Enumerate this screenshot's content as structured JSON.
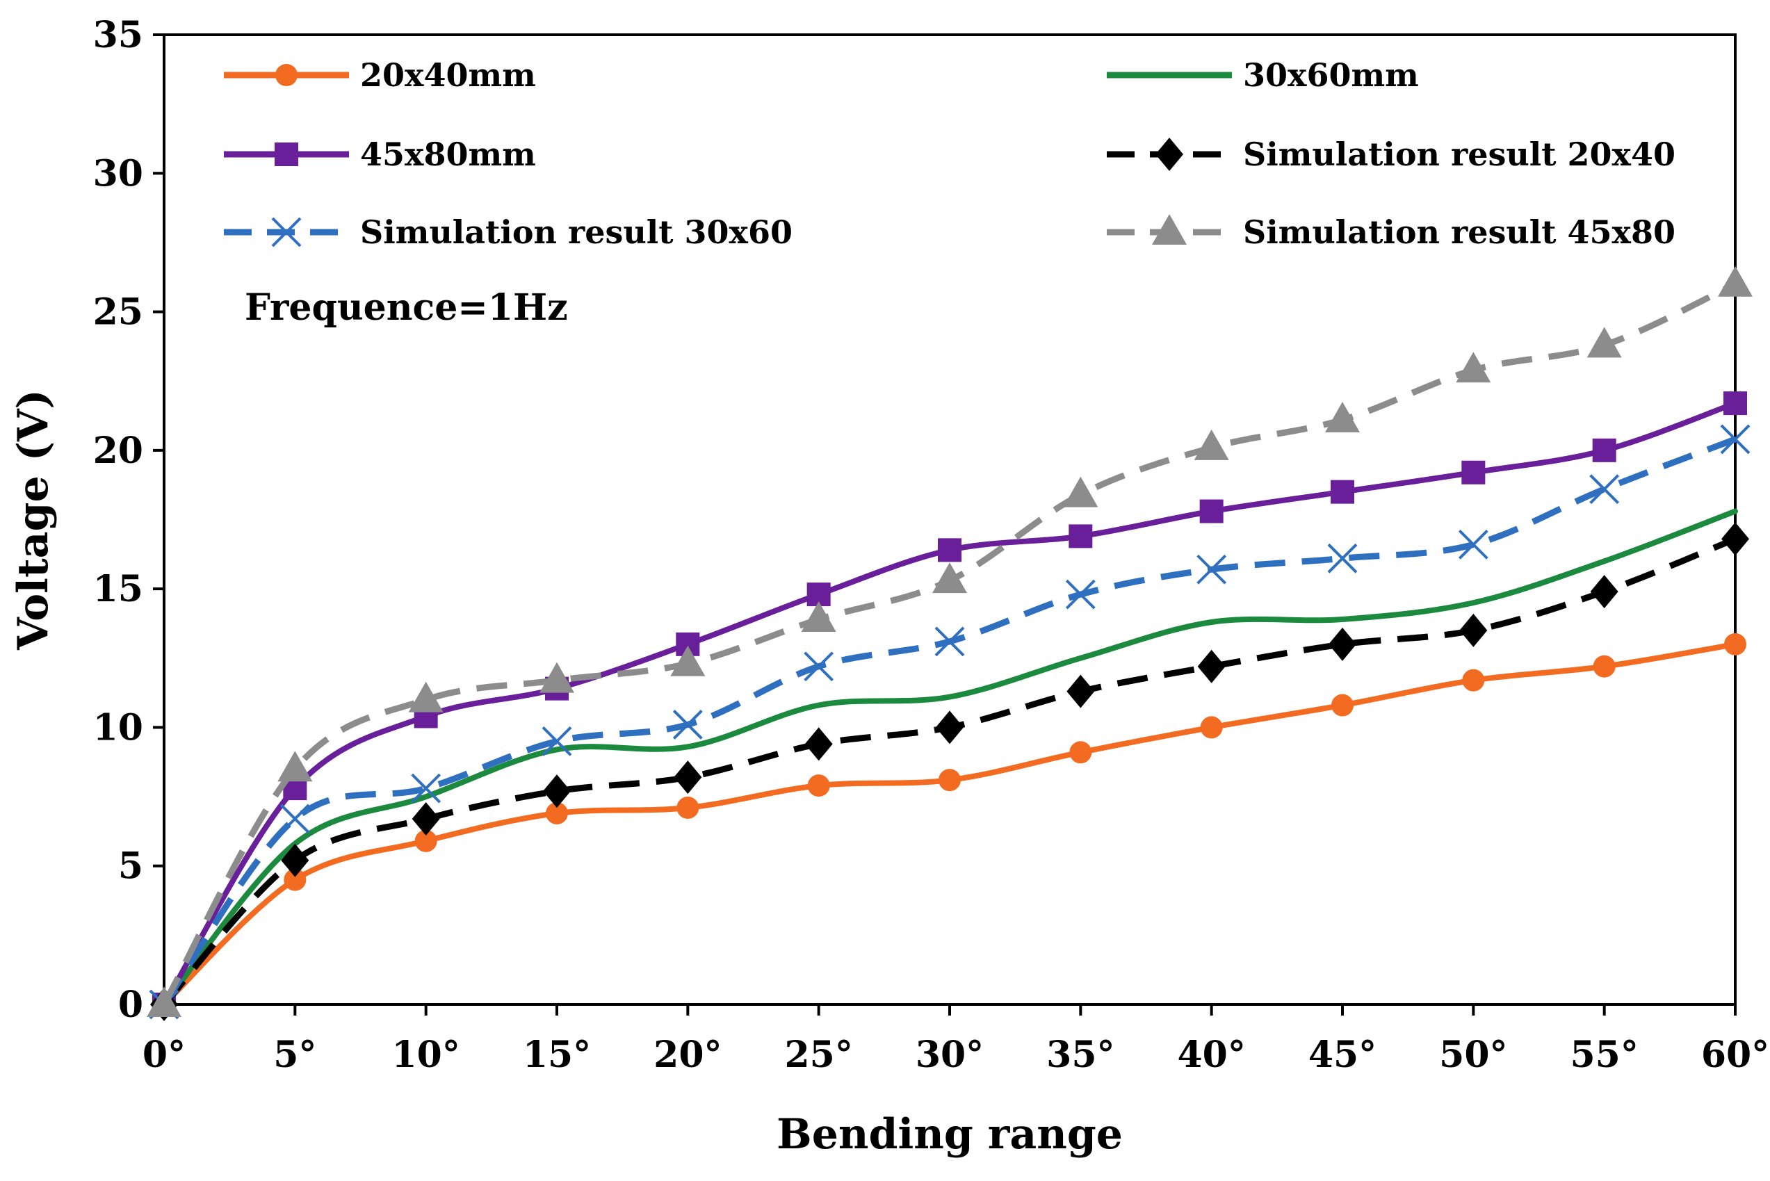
{
  "chart_data": {
    "type": "line",
    "xlabel": "Bending range",
    "ylabel": "Voltage (V)",
    "ylim": [
      0,
      35
    ],
    "yticks": [
      "0",
      "5",
      "10",
      "15",
      "20",
      "25",
      "30",
      "35"
    ],
    "yticks_values": [
      0,
      5,
      10,
      15,
      20,
      25,
      30,
      35
    ],
    "categories": [
      "0°",
      "5°",
      "10°",
      "15°",
      "20°",
      "25°",
      "30°",
      "35°",
      "40°",
      "45°",
      "50°",
      "55°",
      "60°"
    ],
    "annotation": "Frequence=1Hz",
    "legend_position": "top, inside plot, two columns",
    "grid": false,
    "series": [
      {
        "name": "20x40mm",
        "color": "#F26B21",
        "dash": false,
        "marker": "circle",
        "values": [
          0,
          4.5,
          5.9,
          6.9,
          7.1,
          7.9,
          8.1,
          9.1,
          10.0,
          10.8,
          11.7,
          12.2,
          13.0
        ]
      },
      {
        "name": "30x60mm",
        "color": "#1C8A3E",
        "dash": false,
        "marker": "none",
        "values": [
          0,
          5.8,
          7.5,
          9.2,
          9.3,
          10.8,
          11.1,
          12.5,
          13.8,
          13.9,
          14.5,
          16.0,
          17.8
        ]
      },
      {
        "name": "45x80mm",
        "color": "#6A1F9A",
        "dash": false,
        "marker": "square",
        "values": [
          0,
          7.8,
          10.4,
          11.4,
          13.0,
          14.8,
          16.4,
          16.9,
          17.8,
          18.5,
          19.2,
          20.0,
          21.7
        ]
      },
      {
        "name": "Simulation result 20x40",
        "color": "#000000",
        "dash": true,
        "marker": "diamond",
        "values": [
          0,
          5.2,
          6.7,
          7.7,
          8.2,
          9.4,
          10.0,
          11.3,
          12.2,
          13.0,
          13.5,
          14.9,
          16.8
        ]
      },
      {
        "name": "Simulation result 30x60",
        "color": "#2E6FBF",
        "dash": true,
        "marker": "x",
        "values": [
          0,
          6.7,
          7.8,
          9.5,
          10.1,
          12.2,
          13.1,
          14.8,
          15.7,
          16.1,
          16.6,
          18.6,
          20.4
        ]
      },
      {
        "name": "Simulation result 45x80",
        "color": "#8C8C8C",
        "dash": true,
        "marker": "triangle",
        "values": [
          0,
          8.5,
          11.0,
          11.7,
          12.3,
          13.9,
          15.3,
          18.4,
          20.1,
          21.1,
          22.9,
          23.8,
          26.0
        ]
      }
    ]
  }
}
